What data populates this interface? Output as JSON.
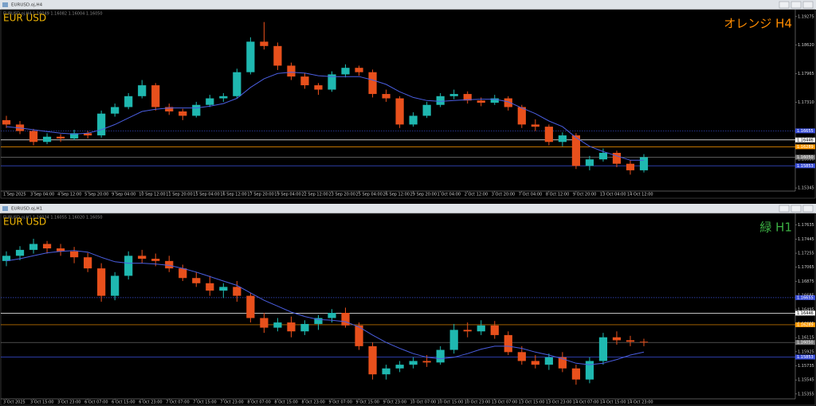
{
  "chart_data": [
    {
      "type": "candlestick",
      "window_title": "EURUSD.oj,H4",
      "info": "EURUSD.oj,H4 1.16049 1.16082 1.16004 1.16050",
      "symbol_label": "EUR USD",
      "corner_label": "オレンジ H4",
      "corner_color": "#ff8c00",
      "bull_color": "#1fb8b0",
      "bear_color": "#e8501c",
      "ma_color": "#4a5ee0",
      "ylim": [
        1.1531,
        1.194
      ],
      "yticks": [
        {
          "value": 1.19275,
          "label": "1.19275"
        },
        {
          "value": 1.1862,
          "label": "1.18620"
        },
        {
          "value": 1.17965,
          "label": "1.17965"
        },
        {
          "value": 1.1731,
          "label": "1.17310"
        },
        {
          "value": 1.16655,
          "label": "1.16655"
        },
        {
          "value": 1.16,
          "label": "1.16000"
        },
        {
          "value": 1.15345,
          "label": "1.15345"
        }
      ],
      "levels": [
        {
          "value": 1.16655,
          "label": "1.16655",
          "color": "#3b4fd8",
          "style": "dotted"
        },
        {
          "value": 1.16446,
          "label": "1.16446",
          "color": "#ffffff",
          "style": "solid"
        },
        {
          "value": 1.16289,
          "label": "1.16289",
          "color": "#ff9900",
          "style": "solid"
        },
        {
          "value": 1.1605,
          "label": "1.16050",
          "color": "#777777",
          "style": "solid"
        },
        {
          "value": 1.15853,
          "label": "1.15853",
          "color": "#3b4fd8",
          "style": "solid"
        }
      ],
      "x_labels": [
        "1 Sep 2025",
        "3 Sep 04:00",
        "4 Sep 12:00",
        "5 Sep 20:00",
        "9 Sep 04:00",
        "10 Sep 12:00",
        "11 Sep 20:00",
        "15 Sep 04:00",
        "16 Sep 12:00",
        "17 Sep 20:00",
        "19 Sep 04:00",
        "22 Sep 12:00",
        "23 Sep 20:00",
        "25 Sep 04:00",
        "26 Sep 12:00",
        "29 Sep 20:00",
        "1 Oct 04:00",
        "2 Oct 12:00",
        "3 Oct 20:00",
        "7 Oct 04:00",
        "8 Oct 12:00",
        "9 Oct 20:00",
        "13 Oct 04:00",
        "14 Oct 12:00"
      ],
      "ohlc": [
        [
          1.169,
          1.17,
          1.1672,
          1.168
        ],
        [
          1.168,
          1.1688,
          1.1658,
          1.1665
        ],
        [
          1.1665,
          1.167,
          1.1632,
          1.164
        ],
        [
          1.164,
          1.166,
          1.1635,
          1.1652
        ],
        [
          1.1652,
          1.1658,
          1.164,
          1.1648
        ],
        [
          1.1648,
          1.1668,
          1.1644,
          1.166
        ],
        [
          1.166,
          1.1665,
          1.1648,
          1.1655
        ],
        [
          1.1655,
          1.1712,
          1.165,
          1.1705
        ],
        [
          1.1705,
          1.1728,
          1.1698,
          1.172
        ],
        [
          1.172,
          1.1752,
          1.1715,
          1.1745
        ],
        [
          1.1745,
          1.1782,
          1.174,
          1.177
        ],
        [
          1.177,
          1.1775,
          1.1712,
          1.172
        ],
        [
          1.172,
          1.1728,
          1.1702,
          1.171
        ],
        [
          1.171,
          1.1716,
          1.169,
          1.17
        ],
        [
          1.17,
          1.1732,
          1.1696,
          1.1725
        ],
        [
          1.1725,
          1.1748,
          1.172,
          1.174
        ],
        [
          1.174,
          1.1752,
          1.1732,
          1.1745
        ],
        [
          1.1745,
          1.1808,
          1.174,
          1.18
        ],
        [
          1.18,
          1.188,
          1.1795,
          1.187
        ],
        [
          1.187,
          1.1915,
          1.1852,
          1.186
        ],
        [
          1.186,
          1.1868,
          1.1805,
          1.1815
        ],
        [
          1.1815,
          1.1822,
          1.1782,
          1.179
        ],
        [
          1.179,
          1.1798,
          1.1762,
          1.177
        ],
        [
          1.177,
          1.1775,
          1.1748,
          1.176
        ],
        [
          1.176,
          1.1802,
          1.1755,
          1.1795
        ],
        [
          1.1795,
          1.1818,
          1.1788,
          1.181
        ],
        [
          1.181,
          1.1815,
          1.1792,
          1.18
        ],
        [
          1.18,
          1.1806,
          1.1742,
          1.175
        ],
        [
          1.175,
          1.176,
          1.1732,
          1.174
        ],
        [
          1.174,
          1.1745,
          1.1672,
          1.168
        ],
        [
          1.168,
          1.1708,
          1.1675,
          1.17
        ],
        [
          1.17,
          1.1732,
          1.1695,
          1.1725
        ],
        [
          1.1725,
          1.1752,
          1.172,
          1.1745
        ],
        [
          1.1745,
          1.176,
          1.1738,
          1.175
        ],
        [
          1.175,
          1.1756,
          1.1728,
          1.1735
        ],
        [
          1.1735,
          1.1742,
          1.1722,
          1.173
        ],
        [
          1.173,
          1.1748,
          1.1725,
          1.174
        ],
        [
          1.174,
          1.1745,
          1.1712,
          1.172
        ],
        [
          1.172,
          1.1725,
          1.1672,
          1.168
        ],
        [
          1.168,
          1.1692,
          1.1665,
          1.1675
        ],
        [
          1.1675,
          1.168,
          1.1632,
          1.164
        ],
        [
          1.164,
          1.1662,
          1.163,
          1.1655
        ],
        [
          1.1655,
          1.166,
          1.1578,
          1.1585
        ],
        [
          1.1585,
          1.1608,
          1.1575,
          1.16
        ],
        [
          1.16,
          1.1625,
          1.1595,
          1.1615
        ],
        [
          1.1615,
          1.162,
          1.1582,
          1.159
        ],
        [
          1.159,
          1.1598,
          1.1565,
          1.1575
        ],
        [
          1.1575,
          1.1612,
          1.157,
          1.1605
        ]
      ],
      "ma": [
        1.1675,
        1.1672,
        1.1668,
        1.1664,
        1.166,
        1.1658,
        1.166,
        1.1668,
        1.168,
        1.1695,
        1.171,
        1.1715,
        1.1718,
        1.1718,
        1.1718,
        1.1722,
        1.1728,
        1.174,
        1.1765,
        1.1785,
        1.1797,
        1.18,
        1.1798,
        1.1792,
        1.179,
        1.179,
        1.179,
        1.1782,
        1.1772,
        1.1755,
        1.1742,
        1.1735,
        1.1733,
        1.1735,
        1.1737,
        1.1738,
        1.1738,
        1.1732,
        1.1718,
        1.1705,
        1.1688,
        1.1675,
        1.165,
        1.163,
        1.1618,
        1.1608,
        1.1598,
        1.1598
      ]
    },
    {
      "type": "candlestick",
      "window_title": "EURUSD.oj,H1",
      "info": "EURUSD.oj,H1 1.16034 1.16055 1.16020 1.16050",
      "symbol_label": "EUR USD",
      "corner_label": "緑 H1",
      "corner_color": "#3cb043",
      "bull_color": "#1fb8b0",
      "bear_color": "#e8501c",
      "ma_color": "#4a5ee0",
      "ylim": [
        1.153,
        1.1775
      ],
      "yticks": [
        {
          "value": 1.17635,
          "label": "1.17635"
        },
        {
          "value": 1.17445,
          "label": "1.17445"
        },
        {
          "value": 1.17255,
          "label": "1.17255"
        },
        {
          "value": 1.17065,
          "label": "1.17065"
        },
        {
          "value": 1.16875,
          "label": "1.16875"
        },
        {
          "value": 1.16685,
          "label": "1.16685"
        },
        {
          "value": 1.16495,
          "label": "1.16495"
        },
        {
          "value": 1.16305,
          "label": "1.16305"
        },
        {
          "value": 1.16115,
          "label": "1.16115"
        },
        {
          "value": 1.15925,
          "label": "1.15925"
        },
        {
          "value": 1.15735,
          "label": "1.15735"
        },
        {
          "value": 1.15545,
          "label": "1.15545"
        },
        {
          "value": 1.15355,
          "label": "1.15355"
        }
      ],
      "levels": [
        {
          "value": 1.16655,
          "label": "1.16655",
          "color": "#3b4fd8",
          "style": "dotted"
        },
        {
          "value": 1.16446,
          "label": "1.16446",
          "color": "#ffffff",
          "style": "solid"
        },
        {
          "value": 1.16289,
          "label": "1.16289",
          "color": "#ff9900",
          "style": "solid"
        },
        {
          "value": 1.1605,
          "label": "1.16050",
          "color": "#777777",
          "style": "solid"
        },
        {
          "value": 1.15853,
          "label": "1.15853",
          "color": "#3b4fd8",
          "style": "solid"
        }
      ],
      "x_labels": [
        "3 Oct 2025",
        "3 Oct 15:00",
        "3 Oct 23:00",
        "6 Oct 07:00",
        "6 Oct 15:00",
        "6 Oct 23:00",
        "7 Oct 07:00",
        "7 Oct 15:00",
        "7 Oct 23:00",
        "8 Oct 07:00",
        "8 Oct 15:00",
        "8 Oct 23:00",
        "9 Oct 07:00",
        "9 Oct 15:00",
        "9 Oct 23:00",
        "10 Oct 07:00",
        "10 Oct 15:00",
        "10 Oct 23:00",
        "13 Oct 07:00",
        "13 Oct 15:00",
        "13 Oct 23:00",
        "14 Oct 07:00",
        "14 Oct 15:00",
        "14 Oct 23:00"
      ],
      "ohlc": [
        [
          1.1715,
          1.1728,
          1.1708,
          1.1722
        ],
        [
          1.1722,
          1.1735,
          1.1716,
          1.173
        ],
        [
          1.173,
          1.1745,
          1.1725,
          1.1738
        ],
        [
          1.1738,
          1.1742,
          1.1725,
          1.1732
        ],
        [
          1.1732,
          1.1738,
          1.1722,
          1.1728
        ],
        [
          1.1728,
          1.1734,
          1.1712,
          1.172
        ],
        [
          1.172,
          1.1726,
          1.17,
          1.1705
        ],
        [
          1.1705,
          1.1712,
          1.166,
          1.1668
        ],
        [
          1.1668,
          1.17,
          1.1662,
          1.1695
        ],
        [
          1.1695,
          1.1728,
          1.169,
          1.1722
        ],
        [
          1.1722,
          1.173,
          1.1712,
          1.1718
        ],
        [
          1.1718,
          1.1725,
          1.1708,
          1.1715
        ],
        [
          1.1715,
          1.1722,
          1.17,
          1.1705
        ],
        [
          1.1705,
          1.171,
          1.1688,
          1.1692
        ],
        [
          1.1692,
          1.17,
          1.168,
          1.1685
        ],
        [
          1.1685,
          1.1695,
          1.1668,
          1.1675
        ],
        [
          1.1675,
          1.1685,
          1.1665,
          1.168
        ],
        [
          1.168,
          1.1688,
          1.166,
          1.1668
        ],
        [
          1.1668,
          1.1672,
          1.1632,
          1.1638
        ],
        [
          1.1638,
          1.1645,
          1.1618,
          1.1625
        ],
        [
          1.1625,
          1.1638,
          1.162,
          1.1632
        ],
        [
          1.1632,
          1.164,
          1.1612,
          1.162
        ],
        [
          1.162,
          1.1635,
          1.1615,
          1.163
        ],
        [
          1.163,
          1.1642,
          1.1622,
          1.1638
        ],
        [
          1.1638,
          1.165,
          1.1632,
          1.1645
        ],
        [
          1.1645,
          1.1652,
          1.1625,
          1.1628
        ],
        [
          1.1628,
          1.1632,
          1.1595,
          1.16
        ],
        [
          1.16,
          1.1605,
          1.1555,
          1.1562
        ],
        [
          1.1562,
          1.1575,
          1.1555,
          1.157
        ],
        [
          1.157,
          1.158,
          1.1565,
          1.1575
        ],
        [
          1.1575,
          1.1585,
          1.157,
          1.158
        ],
        [
          1.158,
          1.1588,
          1.1572,
          1.1578
        ],
        [
          1.1578,
          1.16,
          1.1575,
          1.1595
        ],
        [
          1.1595,
          1.163,
          1.159,
          1.1622
        ],
        [
          1.1622,
          1.1632,
          1.1612,
          1.162
        ],
        [
          1.162,
          1.1635,
          1.1615,
          1.1628
        ],
        [
          1.1628,
          1.1634,
          1.161,
          1.1615
        ],
        [
          1.1615,
          1.162,
          1.1588,
          1.1592
        ],
        [
          1.1592,
          1.16,
          1.1575,
          1.158
        ],
        [
          1.158,
          1.1588,
          1.157,
          1.1575
        ],
        [
          1.1575,
          1.159,
          1.1568,
          1.1585
        ],
        [
          1.1585,
          1.1592,
          1.1565,
          1.157
        ],
        [
          1.157,
          1.1575,
          1.1548,
          1.1555
        ],
        [
          1.1555,
          1.1585,
          1.155,
          1.158
        ],
        [
          1.158,
          1.1618,
          1.1575,
          1.1612
        ],
        [
          1.1612,
          1.162,
          1.1602,
          1.1608
        ],
        [
          1.1608,
          1.1614,
          1.16,
          1.1606
        ],
        [
          1.1606,
          1.161,
          1.16,
          1.1605
        ]
      ],
      "ma": [
        1.1715,
        1.1718,
        1.1722,
        1.1726,
        1.1728,
        1.1729,
        1.1727,
        1.172,
        1.1714,
        1.1712,
        1.1712,
        1.1711,
        1.1709,
        1.1705,
        1.17,
        1.1694,
        1.1688,
        1.1682,
        1.1672,
        1.1662,
        1.1654,
        1.1646,
        1.164,
        1.1636,
        1.1635,
        1.1633,
        1.1626,
        1.1615,
        1.1605,
        1.1597,
        1.159,
        1.1585,
        1.1583,
        1.1585,
        1.159,
        1.1596,
        1.16,
        1.16,
        1.1597,
        1.1592,
        1.1588,
        1.1583,
        1.1577,
        1.1575,
        1.1577,
        1.1582,
        1.1588,
        1.1592
      ]
    }
  ]
}
